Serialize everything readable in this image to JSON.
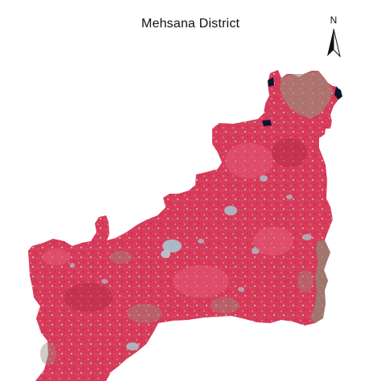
{
  "map": {
    "title": "Mehsana District",
    "north_label": "N",
    "colors": {
      "background": "#ffffff",
      "vegetation": "#d83a5a",
      "vegetation_light": "#e65d7a",
      "vegetation_dark": "#b62c47",
      "urban": "#a8c6d0",
      "bare_soil": "#8f8a74",
      "water": "#0b1630"
    },
    "icon": "north-arrow-icon"
  }
}
